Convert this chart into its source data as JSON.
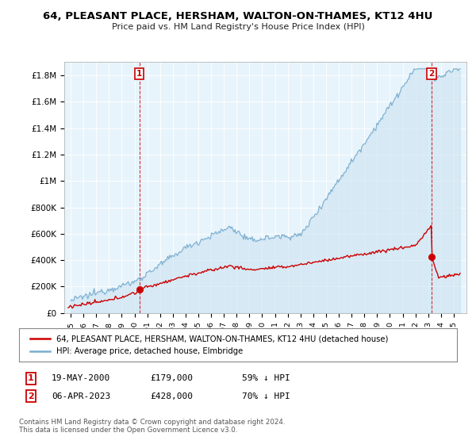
{
  "title": "64, PLEASANT PLACE, HERSHAM, WALTON-ON-THAMES, KT12 4HU",
  "subtitle": "Price paid vs. HM Land Registry's House Price Index (HPI)",
  "ylabel_ticks": [
    "£0",
    "£200K",
    "£400K",
    "£600K",
    "£800K",
    "£1M",
    "£1.2M",
    "£1.4M",
    "£1.6M",
    "£1.8M"
  ],
  "ytick_values": [
    0,
    200000,
    400000,
    600000,
    800000,
    1000000,
    1200000,
    1400000,
    1600000,
    1800000
  ],
  "ylim": [
    0,
    1900000
  ],
  "xlim_start": 1994.5,
  "xlim_end": 2026.0,
  "red_line_color": "#cc0000",
  "blue_line_color": "#7aadcf",
  "blue_fill_color": "#ddeeff",
  "point1_x": 2000.38,
  "point1_y": 179000,
  "point2_x": 2023.27,
  "point2_y": 428000,
  "legend_red": "64, PLEASANT PLACE, HERSHAM, WALTON-ON-THAMES, KT12 4HU (detached house)",
  "legend_blue": "HPI: Average price, detached house, Elmbridge",
  "note1_date": "19-MAY-2000",
  "note1_price": "£179,000",
  "note1_hpi": "59% ↓ HPI",
  "note2_date": "06-APR-2023",
  "note2_price": "£428,000",
  "note2_hpi": "70% ↓ HPI",
  "footnote": "Contains HM Land Registry data © Crown copyright and database right 2024.\nThis data is licensed under the Open Government Licence v3.0.",
  "background_color": "#ffffff",
  "grid_color": "#cccccc"
}
